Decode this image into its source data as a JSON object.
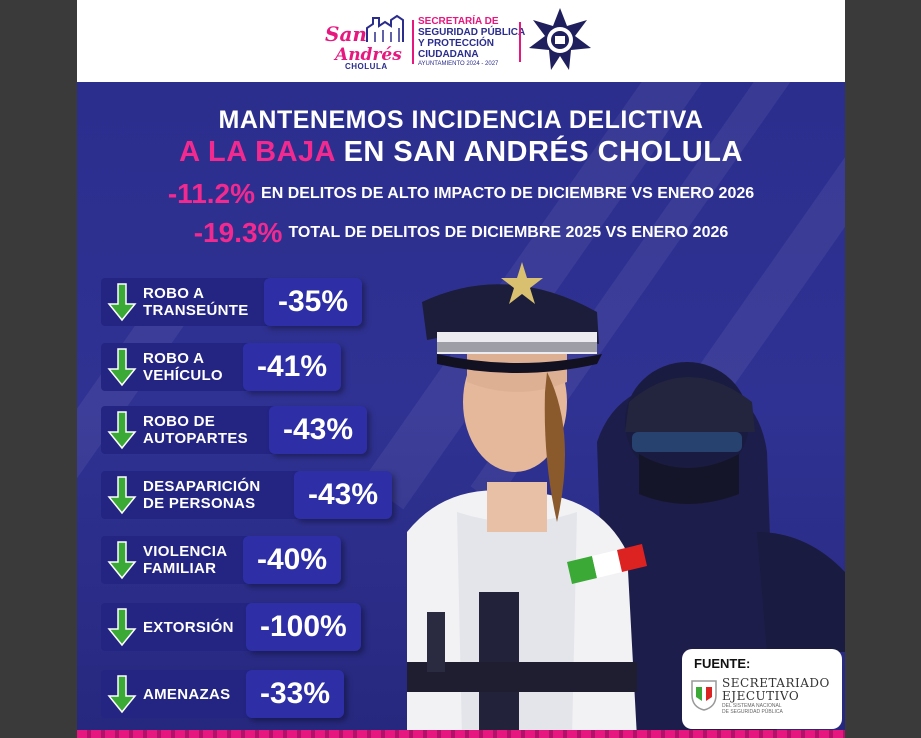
{
  "header": {
    "logo_line1": "San",
    "logo_line2": "Andrés",
    "logo_line3": "CHOLULA",
    "secretaria_line1": "SECRETARÍA DE",
    "secretaria_line2": "SEGURIDAD PÚBLICA",
    "secretaria_line3": "Y PROTECCIÓN",
    "secretaria_line4": "CIUDADANA",
    "secretaria_line5": "AYUNTAMIENTO 2024 - 2027"
  },
  "title": {
    "line1": "MANTENEMOS INCIDENCIA DELICTIVA",
    "line2_pink": "A LA BAJA",
    "line2_rest": " EN SAN ANDRÉS CHOLULA"
  },
  "stats": [
    {
      "pct": "-11.2%",
      "desc": "EN DELITOS DE ALTO IMPACTO DE DICIEMBRE VS ENERO 2026"
    },
    {
      "pct": "-19.3%",
      "desc": "TOTAL DE DELITOS DE DICIEMBRE 2025 VS ENERO 2026"
    }
  ],
  "crimes": [
    {
      "line1": "ROBO A",
      "line2": "TRANSEÚNTE",
      "value": "-35%",
      "change_pct": -35
    },
    {
      "line1": "ROBO A",
      "line2": "VEHÍCULO",
      "value": "-41%",
      "change_pct": -41
    },
    {
      "line1": "ROBO DE",
      "line2": "AUTOPARTES",
      "value": "-43%",
      "change_pct": -43
    },
    {
      "line1": "DESAPARICIÓN",
      "line2": "DE PERSONAS",
      "value": "-43%",
      "change_pct": -43
    },
    {
      "line1": "VIOLENCIA",
      "line2": "FAMILIAR",
      "value": "-40%",
      "change_pct": -40
    },
    {
      "line1": "EXTORSIÓN",
      "line2": "",
      "value": "-100%",
      "change_pct": -100
    },
    {
      "line1": "AMENAZAS",
      "line2": "",
      "value": "-33%",
      "change_pct": -33
    }
  ],
  "source": {
    "label": "FUENTE:",
    "name_line1": "SECRETARIADO",
    "name_line2": "EJECUTIVO",
    "sub_line1": "DEL SISTEMA NACIONAL",
    "sub_line2": "DE SEGURIDAD PÚBLICA"
  },
  "colors": {
    "navy": "#2b2d8c",
    "pink": "#f22a8f",
    "arrow_green": "#3aa935"
  }
}
